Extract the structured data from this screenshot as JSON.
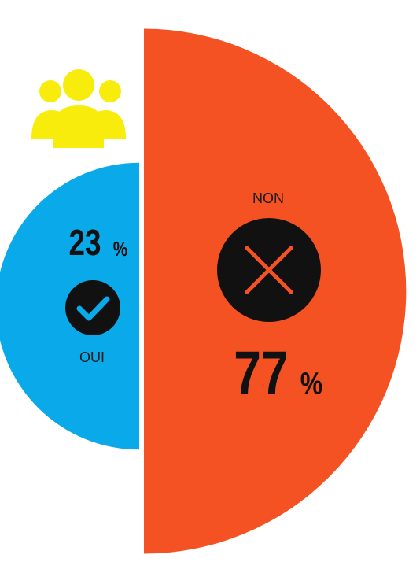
{
  "chart_data": {
    "type": "semicircles",
    "categories": [
      "OUI",
      "NON"
    ],
    "values": [
      23,
      77
    ],
    "value_unit": "%",
    "colors": [
      "#0aa9e9",
      "#f55223"
    ]
  }
}
